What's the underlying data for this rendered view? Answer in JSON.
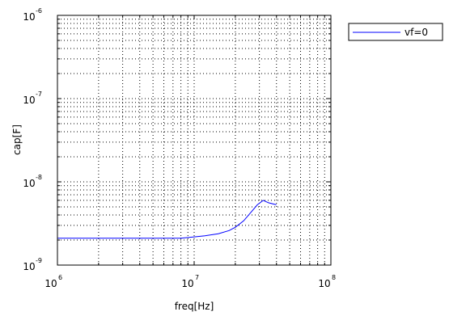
{
  "chart_data": {
    "type": "line",
    "xlabel": "freq[Hz]",
    "ylabel": "cap[F]",
    "xscale": "log",
    "yscale": "log",
    "xlim": [
      1000000,
      100000000
    ],
    "ylim": [
      1e-09,
      1e-06
    ],
    "grid": true,
    "legend_position": "outside-top-right",
    "x_ticks": [
      {
        "base": "10",
        "exp": "6"
      },
      {
        "base": "10",
        "exp": "7"
      },
      {
        "base": "10",
        "exp": "8"
      }
    ],
    "y_ticks": [
      {
        "base": "10",
        "exp": "-9"
      },
      {
        "base": "10",
        "exp": "-8"
      },
      {
        "base": "10",
        "exp": "-7"
      },
      {
        "base": "10",
        "exp": "-6"
      }
    ],
    "series": [
      {
        "name": "vf=0",
        "color": "#0000ff",
        "x": [
          1000000,
          3000000,
          8000000,
          10000000,
          12000000,
          15000000,
          18000000,
          20000000,
          23000000,
          26000000,
          29000000,
          32000000,
          35000000,
          40000000
        ],
        "y": [
          2.1e-09,
          2.1e-09,
          2.1e-09,
          2.18e-09,
          2.25e-09,
          2.38e-09,
          2.6e-09,
          2.85e-09,
          3.4e-09,
          4.3e-09,
          5.3e-09,
          6e-09,
          5.6e-09,
          5.3e-09
        ]
      }
    ]
  }
}
